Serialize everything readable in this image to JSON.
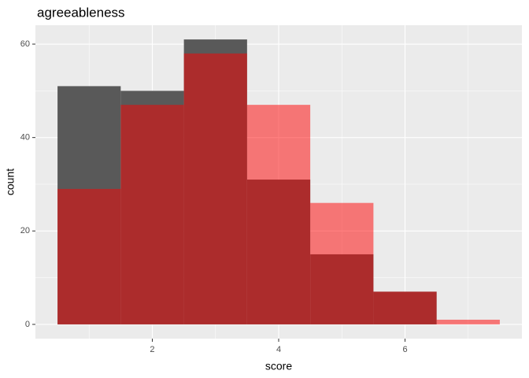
{
  "chart_data": {
    "type": "histogram",
    "title": "agreeableness",
    "x_label": "score",
    "y_label": "count",
    "bins": [
      0.5,
      1.5,
      2.5,
      3.5,
      4.5,
      5.5,
      6.5,
      7.5
    ],
    "series": [
      {
        "color": "#595959",
        "opacity": 1,
        "values": [
          51,
          50,
          61,
          31,
          15,
          7,
          0
        ]
      },
      {
        "color": "#ff0000",
        "opacity": 0.5,
        "values": [
          29,
          47,
          58,
          47,
          26,
          7,
          1
        ]
      }
    ],
    "xlim": [
      0.15,
      7.85
    ],
    "ylim": [
      -3.05,
      64.05
    ],
    "xticks": [
      2,
      4,
      6
    ],
    "yticks": [
      0,
      20,
      40,
      60
    ],
    "x_minor_grid": [
      1,
      3,
      5,
      7
    ],
    "y_minor_grid": [
      10,
      30,
      50
    ],
    "grid": true
  }
}
